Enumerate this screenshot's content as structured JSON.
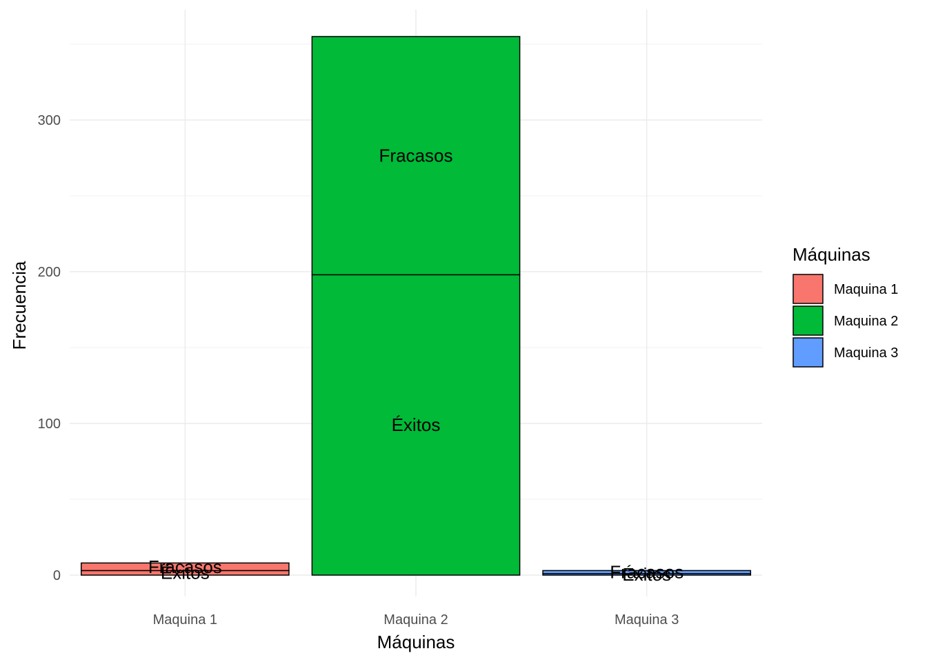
{
  "chart_data": {
    "type": "bar",
    "stacked": true,
    "categories": [
      "Maquina 1",
      "Maquina 2",
      "Maquina 3"
    ],
    "series": [
      {
        "segment_label": "Éxitos",
        "values": [
          3,
          198,
          1
        ]
      },
      {
        "segment_label": "Fracasos",
        "values": [
          5,
          157,
          2
        ]
      }
    ],
    "fill_colors": [
      "#F8766D",
      "#00BA38",
      "#619CFF"
    ],
    "xlabel": "Máquinas",
    "ylabel": "Frecuencia",
    "yticks": [
      0,
      100,
      200,
      300
    ],
    "ylim": [
      -15,
      372
    ],
    "grid": true,
    "legend": {
      "title": "Máquinas",
      "position": "right",
      "items": [
        "Maquina 1",
        "Maquina 2",
        "Maquina 3"
      ]
    }
  }
}
